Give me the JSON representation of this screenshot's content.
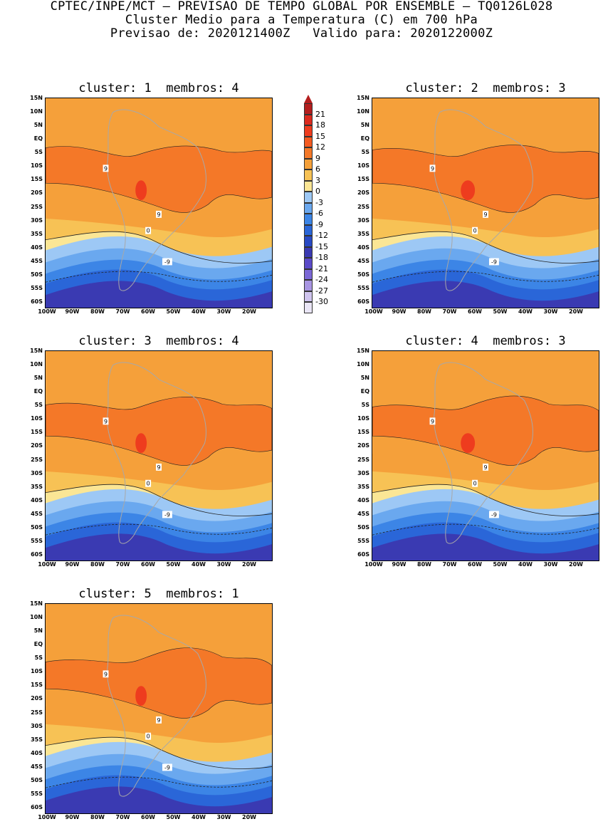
{
  "header": {
    "line1": "CPTEC/INPE/MCT – PREVISAO DE TEMPO GLOBAL POR ENSEMBLE – TQ0126L028",
    "line2": "Cluster Medio para a Temperatura (C) em 700 hPa",
    "line3": "Previsao de: 2020121400Z   Valido para: 2020122000Z"
  },
  "panels": [
    {
      "title": "cluster: 1  membros: 4"
    },
    {
      "title": "cluster: 2  membros: 3"
    },
    {
      "title": "cluster: 3  membros: 4"
    },
    {
      "title": "cluster: 4  membros: 3"
    },
    {
      "title": "cluster: 5  membros: 1"
    }
  ],
  "axes": {
    "lat_labels": [
      "15N",
      "10N",
      "5N",
      "EQ",
      "5S",
      "10S",
      "15S",
      "20S",
      "25S",
      "30S",
      "35S",
      "40S",
      "45S",
      "50S",
      "55S",
      "60S"
    ],
    "lon_labels": [
      "100W",
      "90W",
      "80W",
      "70W",
      "60W",
      "50W",
      "40W",
      "30W",
      "20W"
    ]
  },
  "colorbar": {
    "labels": [
      "21",
      "18",
      "15",
      "12",
      "9",
      "6",
      "3",
      "0",
      "-3",
      "-6",
      "-9",
      "-12",
      "-15",
      "-18",
      "-21",
      "-24",
      "-27",
      "-30"
    ],
    "colors": [
      "#b41e1e",
      "#dc2a1e",
      "#ee3c1e",
      "#f45a20",
      "#f47828",
      "#f5a03a",
      "#f7c255",
      "#fbe695",
      "#9dc8f5",
      "#6aa8ef",
      "#3c85e6",
      "#2a66d8",
      "#2849c4",
      "#3a3ab2",
      "#5a4ac8",
      "#7b68d6",
      "#a895e2",
      "#cfc4ee",
      "#eae6f6"
    ]
  },
  "contour_labels": [
    "9",
    "0",
    "-9"
  ]
}
